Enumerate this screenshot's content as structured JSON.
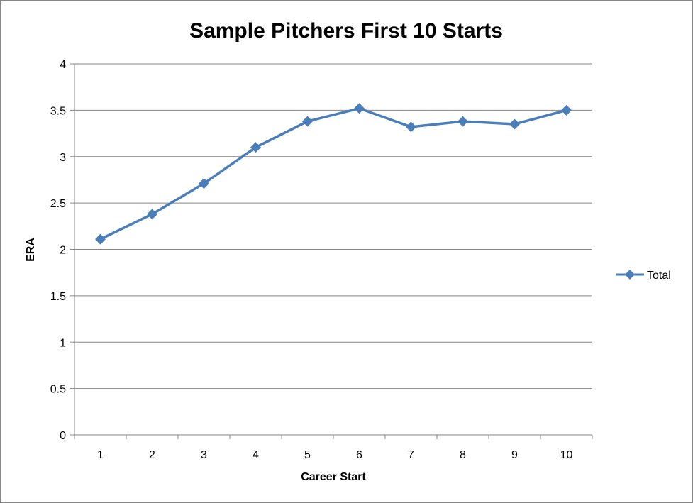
{
  "chart_data": {
    "type": "line",
    "title": "Sample Pitchers First 10 Starts",
    "xlabel": "Career Start",
    "ylabel": "ERA",
    "categories": [
      "1",
      "2",
      "3",
      "4",
      "5",
      "6",
      "7",
      "8",
      "9",
      "10"
    ],
    "yticks": [
      "0",
      "0.5",
      "1",
      "1.5",
      "2",
      "2.5",
      "3",
      "3.5",
      "4"
    ],
    "ylim": [
      0,
      4
    ],
    "grid": true,
    "legend_position": "right",
    "series": [
      {
        "name": "Total",
        "color": "#4a7ebb",
        "values": [
          2.11,
          2.38,
          2.71,
          3.1,
          3.38,
          3.52,
          3.32,
          3.38,
          3.35,
          3.5
        ]
      }
    ]
  }
}
